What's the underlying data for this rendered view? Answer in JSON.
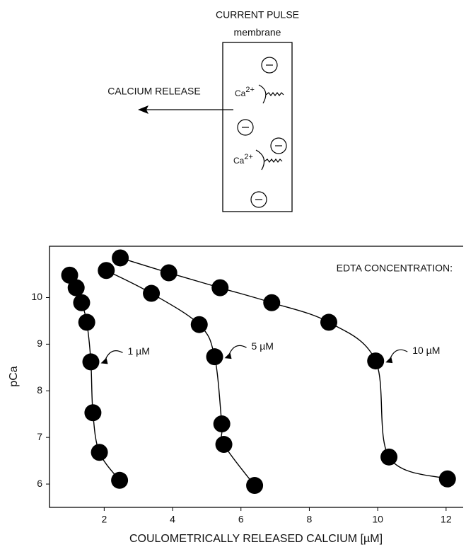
{
  "diagram": {
    "title": "CURRENT PULSE",
    "membrane_label": "membrane",
    "release_label": "CALCIUM RELEASE",
    "ions": [
      {
        "base": "Ca",
        "sup": "2+"
      },
      {
        "base": "Ca",
        "sup": "2+"
      }
    ]
  },
  "chart_data": {
    "type": "line",
    "legend_title": "EDTA CONCENTRATION:",
    "x_label": "COULOMETRICALLY RELEASED CALCIUM [µM]",
    "y_label": "pCa",
    "xlim": [
      0.4,
      12.5
    ],
    "ylim": [
      5.5,
      11.1
    ],
    "xticks": [
      2,
      4,
      6,
      8,
      10,
      12
    ],
    "yticks": [
      6,
      7,
      8,
      9,
      10
    ],
    "series": [
      {
        "name": "1 µM",
        "color": "#000000",
        "x": [
          0.99,
          1.18,
          1.34,
          1.49,
          1.61,
          1.67,
          1.86,
          2.45
        ],
        "values": [
          10.48,
          10.21,
          9.89,
          9.47,
          8.62,
          7.53,
          6.68,
          6.08
        ]
      },
      {
        "name": "5 µM",
        "color": "#000000",
        "x": [
          2.06,
          3.38,
          4.78,
          5.23,
          5.44,
          5.5,
          6.4
        ],
        "values": [
          10.58,
          10.09,
          9.42,
          8.73,
          7.29,
          6.85,
          5.97
        ]
      },
      {
        "name": "10 µM",
        "color": "#000000",
        "x": [
          2.47,
          3.89,
          5.39,
          6.9,
          8.57,
          9.94,
          10.33,
          12.04
        ],
        "values": [
          10.85,
          10.53,
          10.21,
          9.89,
          9.47,
          8.64,
          6.58,
          6.11
        ]
      }
    ]
  }
}
